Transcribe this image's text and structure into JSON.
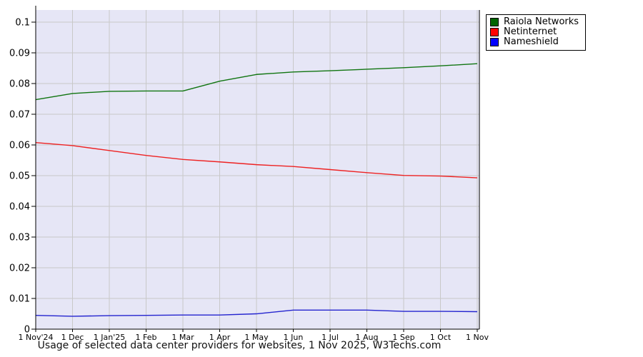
{
  "chart_data": {
    "type": "line",
    "title": "Usage of selected data center providers for websites, 1 Nov 2025, W3Techs.com",
    "categories": [
      "1 Nov'24",
      "1 Dec",
      "1 Jan'25",
      "1 Feb",
      "1 Mar",
      "1 Apr",
      "1 May",
      "1 Jun",
      "1 Jul",
      "1 Aug",
      "1 Sep",
      "1 Oct",
      "1 Nov"
    ],
    "series": [
      {
        "name": "Raiola Networks",
        "color": "#117511",
        "legend_color": "#006400",
        "values": [
          0.0748,
          0.0768,
          0.0775,
          0.0776,
          0.0776,
          0.0808,
          0.083,
          0.0838,
          0.0842,
          0.0847,
          0.0852,
          0.0858,
          0.0865
        ]
      },
      {
        "name": "Netinternet",
        "color": "#ee2222",
        "legend_color": "#ff0000",
        "values": [
          0.0608,
          0.0598,
          0.0582,
          0.0566,
          0.0553,
          0.0545,
          0.0536,
          0.053,
          0.052,
          0.051,
          0.0501,
          0.0499,
          0.0493
        ]
      },
      {
        "name": "Nameshield",
        "color": "#2424cf",
        "legend_color": "#0000ff",
        "values": [
          0.0045,
          0.0042,
          0.0044,
          0.0045,
          0.0046,
          0.0046,
          0.005,
          0.0062,
          0.0062,
          0.0062,
          0.0058,
          0.0058,
          0.0057
        ]
      }
    ],
    "y_ticks": [
      0,
      0.01,
      0.02,
      0.03,
      0.04,
      0.05,
      0.06,
      0.07,
      0.08,
      0.09,
      0.1
    ],
    "y_tick_labels": [
      "0",
      "0.01",
      "0.02",
      "0.03",
      "0.04",
      "0.05",
      "0.06",
      "0.07",
      "0.08",
      "0.09",
      "0.1"
    ],
    "ylim": [
      0,
      0.104
    ],
    "grid": true,
    "legend_position": "top-right-outside",
    "colors": {
      "plot_bg": "#e6e6f6",
      "grid": "#c8c8c8",
      "axis": "#000000",
      "tick_text": "#000000",
      "caption_text": "#111111"
    }
  }
}
